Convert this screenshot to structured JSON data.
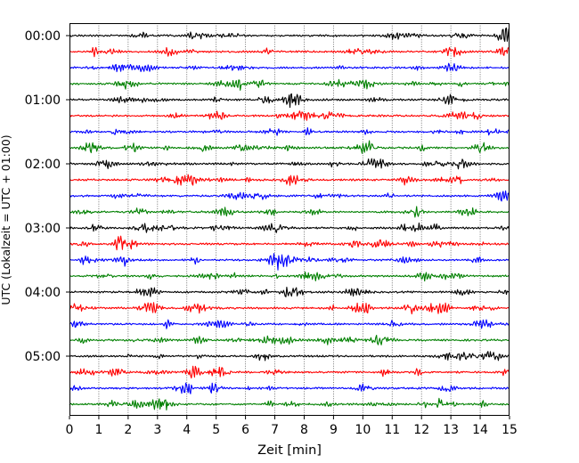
{
  "chart_data": {
    "type": "line",
    "title": "",
    "xlabel": "Zeit  [min]",
    "ylabel": "UTC (Lokalzeit = UTC + 01:00)",
    "xlim": [
      0,
      15
    ],
    "x_ticks": [
      "0",
      "1",
      "2",
      "3",
      "4",
      "5",
      "6",
      "7",
      "8",
      "9",
      "10",
      "11",
      "12",
      "13",
      "14",
      "15"
    ],
    "y_hour_ticks": [
      "00:00",
      "01:00",
      "02:00",
      "03:00",
      "04:00",
      "05:00"
    ],
    "vertical_grid": true,
    "grid_style": "dotted",
    "trace_interval_minutes": 15,
    "trace_count": 24,
    "color_cycle": [
      "#000000",
      "#ff0000",
      "#0000ff",
      "#008000"
    ],
    "traces": [
      {
        "start": "00:00",
        "color": "#000000"
      },
      {
        "start": "00:15",
        "color": "#ff0000"
      },
      {
        "start": "00:30",
        "color": "#0000ff"
      },
      {
        "start": "00:45",
        "color": "#008000"
      },
      {
        "start": "01:00",
        "color": "#000000"
      },
      {
        "start": "01:15",
        "color": "#ff0000"
      },
      {
        "start": "01:30",
        "color": "#0000ff"
      },
      {
        "start": "01:45",
        "color": "#008000"
      },
      {
        "start": "02:00",
        "color": "#000000"
      },
      {
        "start": "02:15",
        "color": "#ff0000"
      },
      {
        "start": "02:30",
        "color": "#0000ff"
      },
      {
        "start": "02:45",
        "color": "#008000"
      },
      {
        "start": "03:00",
        "color": "#000000"
      },
      {
        "start": "03:15",
        "color": "#ff0000"
      },
      {
        "start": "03:30",
        "color": "#0000ff"
      },
      {
        "start": "03:45",
        "color": "#008000"
      },
      {
        "start": "04:00",
        "color": "#000000"
      },
      {
        "start": "04:15",
        "color": "#ff0000"
      },
      {
        "start": "04:30",
        "color": "#0000ff"
      },
      {
        "start": "04:45",
        "color": "#008000"
      },
      {
        "start": "05:00",
        "color": "#000000"
      },
      {
        "start": "05:15",
        "color": "#ff0000"
      },
      {
        "start": "05:30",
        "color": "#0000ff"
      },
      {
        "start": "05:45",
        "color": "#008000"
      }
    ]
  }
}
